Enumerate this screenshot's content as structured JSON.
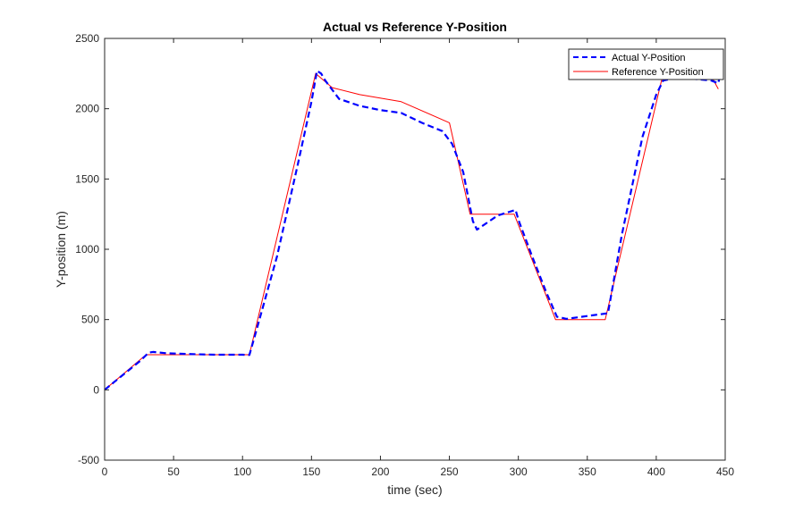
{
  "chart_data": {
    "type": "line",
    "title": "Actual vs Reference Y-Position",
    "xlabel": "time (sec)",
    "ylabel": "Y-position (m)",
    "xlim": [
      0,
      450
    ],
    "ylim": [
      -500,
      2500
    ],
    "xticks": [
      0,
      50,
      100,
      150,
      200,
      250,
      300,
      350,
      400,
      450
    ],
    "yticks": [
      -500,
      0,
      500,
      1000,
      1500,
      2000,
      2500
    ],
    "grid": false,
    "legend_position": "top-right",
    "series": [
      {
        "name": "Actual Y-Position",
        "color": "#0000ff",
        "style": "dashed",
        "x": [
          0,
          5,
          15,
          25,
          32,
          35,
          45,
          60,
          80,
          100,
          105,
          110,
          125,
          140,
          150,
          154,
          157,
          160,
          170,
          185,
          200,
          215,
          230,
          245,
          252,
          260,
          267,
          270,
          285,
          298,
          300,
          310,
          320,
          328,
          335,
          350,
          365,
          375,
          390,
          400,
          405,
          410,
          420,
          440,
          445,
          446
        ],
        "y": [
          0,
          40,
          120,
          200,
          265,
          270,
          260,
          255,
          250,
          250,
          248,
          420,
          950,
          1600,
          2050,
          2270,
          2250,
          2200,
          2070,
          2020,
          1990,
          1970,
          1900,
          1840,
          1750,
          1550,
          1200,
          1140,
          1240,
          1280,
          1210,
          950,
          700,
          520,
          505,
          525,
          545,
          1100,
          1800,
          2100,
          2200,
          2210,
          2220,
          2200,
          2180,
          2230
        ]
      },
      {
        "name": "Reference Y-Position",
        "color": "#ff0000",
        "style": "solid",
        "x": [
          0,
          30,
          105,
          153,
          165,
          185,
          215,
          250,
          265,
          297,
          327,
          363,
          405,
          410,
          420,
          440,
          445
        ],
        "y": [
          0,
          250,
          250,
          2250,
          2150,
          2100,
          2050,
          1900,
          1250,
          1250,
          500,
          500,
          2250,
          2250,
          2220,
          2230,
          2140
        ]
      }
    ]
  }
}
